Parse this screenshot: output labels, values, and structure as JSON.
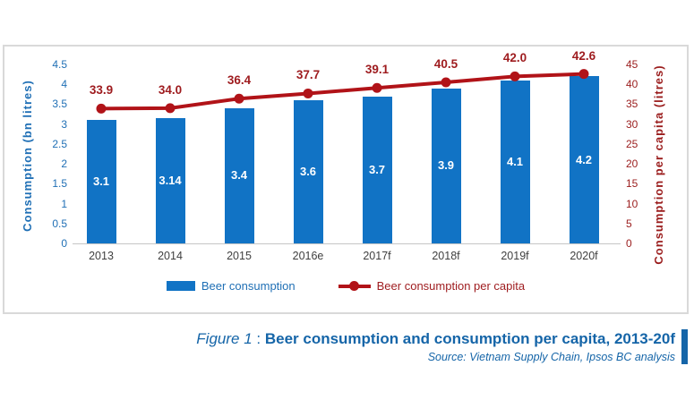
{
  "chart_data": {
    "type": "bar+line",
    "categories": [
      "2013",
      "2014",
      "2015",
      "2016e",
      "2017f",
      "2018f",
      "2019f",
      "2020f"
    ],
    "series": [
      {
        "name": "Beer consumption",
        "type": "bar",
        "axis": "left",
        "color": "#1173c5",
        "values": [
          3.1,
          3.14,
          3.4,
          3.6,
          3.7,
          3.9,
          4.1,
          4.2
        ],
        "labels": [
          "3.1",
          "3.14",
          "3.4",
          "3.6",
          "3.7",
          "3.9",
          "4.1",
          "4.2"
        ]
      },
      {
        "name": "Beer consumption per capita",
        "type": "line",
        "axis": "right",
        "color": "#b11318",
        "values": [
          33.9,
          34.0,
          36.4,
          37.7,
          39.1,
          40.5,
          42.0,
          42.6
        ],
        "labels": [
          "33.9",
          "34.0",
          "36.4",
          "37.7",
          "39.1",
          "40.5",
          "42.0",
          "42.6"
        ]
      }
    ],
    "left_axis": {
      "label": "Consumption (bn litres)",
      "min": 0,
      "max": 4.5,
      "tick_values": [
        4.5,
        4,
        3.5,
        3,
        2.5,
        2,
        1.5,
        1,
        0.5,
        0
      ],
      "tick_labels": [
        "4.5",
        "4",
        "3.5",
        "3",
        "2.5",
        "2",
        "1.5",
        "1",
        "0.5",
        "0"
      ]
    },
    "right_axis": {
      "label": "Consumption per capita (litres)",
      "min": 0,
      "max": 45,
      "tick_values": [
        45,
        40,
        35,
        30,
        25,
        20,
        15,
        10,
        5,
        0
      ],
      "tick_labels": [
        "45",
        "40",
        "35",
        "30",
        "25",
        "20",
        "15",
        "10",
        "5",
        "0"
      ]
    },
    "grid": false,
    "legend_position": "bottom"
  },
  "legend": {
    "items": [
      {
        "label": "Beer consumption",
        "marker": "square",
        "color": "#1173c5"
      },
      {
        "label": "Beer consumption per capita",
        "marker": "line-dot",
        "color": "#b11318"
      }
    ]
  },
  "caption": {
    "figure_label": "Figure 1",
    "separator": " : ",
    "title": "Beer consumption and consumption per capita, 2013-20f",
    "source": "Source: Vietnam Supply Chain, Ipsos BC analysis"
  },
  "colors": {
    "bar_blue": "#1173c5",
    "line_red": "#b11318",
    "left_axis_blue": "#1f6fb5",
    "right_axis_red": "#9a1c1c",
    "data_label_red": "#9e1b1e",
    "x_label_gray": "#3f3f3f",
    "caption_blue": "#1565a8",
    "box_border": "#d9d9d9"
  }
}
